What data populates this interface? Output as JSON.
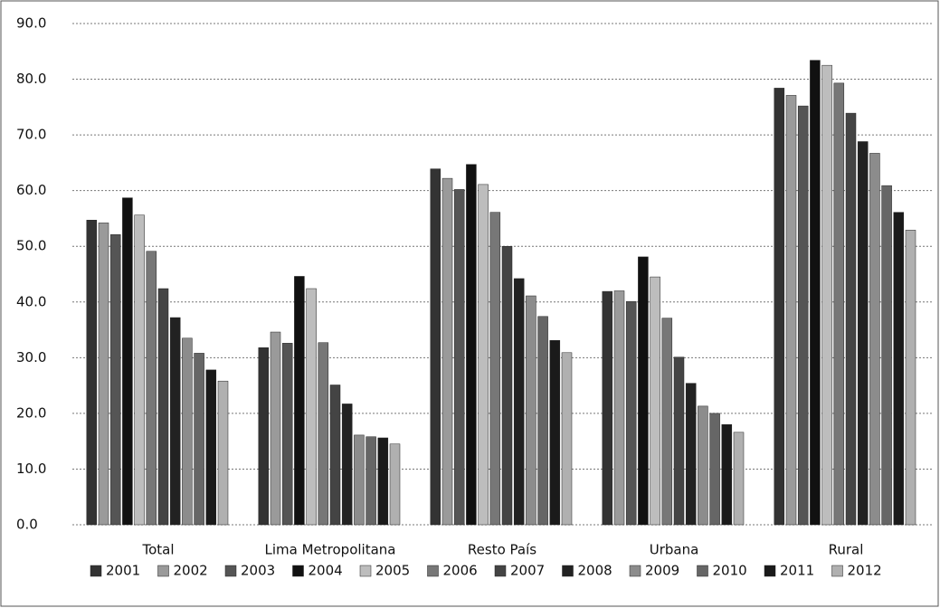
{
  "chart_data": {
    "type": "bar",
    "categories": [
      "Total",
      "Lima Metropolitana",
      "Resto País",
      "Urbana",
      "Rural"
    ],
    "series": [
      {
        "name": "2001",
        "color": "#333333",
        "values": [
          54.7,
          31.8,
          63.9,
          41.9,
          78.4
        ]
      },
      {
        "name": "2002",
        "color": "#9a9a9a",
        "values": [
          54.2,
          34.6,
          62.2,
          42.0,
          77.1
        ]
      },
      {
        "name": "2003",
        "color": "#555555",
        "values": [
          52.1,
          32.6,
          60.2,
          40.1,
          75.2
        ]
      },
      {
        "name": "2004",
        "color": "#111111",
        "values": [
          58.7,
          44.6,
          64.7,
          48.1,
          83.4
        ]
      },
      {
        "name": "2005",
        "color": "#bdbdbd",
        "values": [
          55.6,
          42.4,
          61.1,
          44.5,
          82.5
        ]
      },
      {
        "name": "2006",
        "color": "#777777",
        "values": [
          49.1,
          32.7,
          56.1,
          37.1,
          79.3
        ]
      },
      {
        "name": "2007",
        "color": "#444444",
        "values": [
          42.4,
          25.1,
          50.0,
          30.1,
          73.9
        ]
      },
      {
        "name": "2008",
        "color": "#222222",
        "values": [
          37.2,
          21.7,
          44.2,
          25.4,
          68.8
        ]
      },
      {
        "name": "2009",
        "color": "#8c8c8c",
        "values": [
          33.5,
          16.1,
          41.1,
          21.3,
          66.7
        ]
      },
      {
        "name": "2010",
        "color": "#666666",
        "values": [
          30.8,
          15.8,
          37.4,
          20.0,
          60.9
        ]
      },
      {
        "name": "2011",
        "color": "#1a1a1a",
        "values": [
          27.8,
          15.6,
          33.1,
          18.0,
          56.1
        ]
      },
      {
        "name": "2012",
        "color": "#b0b0b0",
        "values": [
          25.8,
          14.5,
          30.9,
          16.6,
          52.9
        ]
      }
    ],
    "ylim": [
      0,
      90
    ],
    "yticks": [
      {
        "value": 0,
        "label": "0.0"
      },
      {
        "value": 10,
        "label": "10.0"
      },
      {
        "value": 20,
        "label": "20.0"
      },
      {
        "value": 30,
        "label": "30.0"
      },
      {
        "value": 40,
        "label": "40.0"
      },
      {
        "value": 50,
        "label": "50.0"
      },
      {
        "value": 60,
        "label": "60.0"
      },
      {
        "value": 70,
        "label": "70.0"
      },
      {
        "value": 80,
        "label": "80.0"
      },
      {
        "value": 90,
        "label": "90.0"
      }
    ],
    "grid": true,
    "legend": "bottom"
  }
}
